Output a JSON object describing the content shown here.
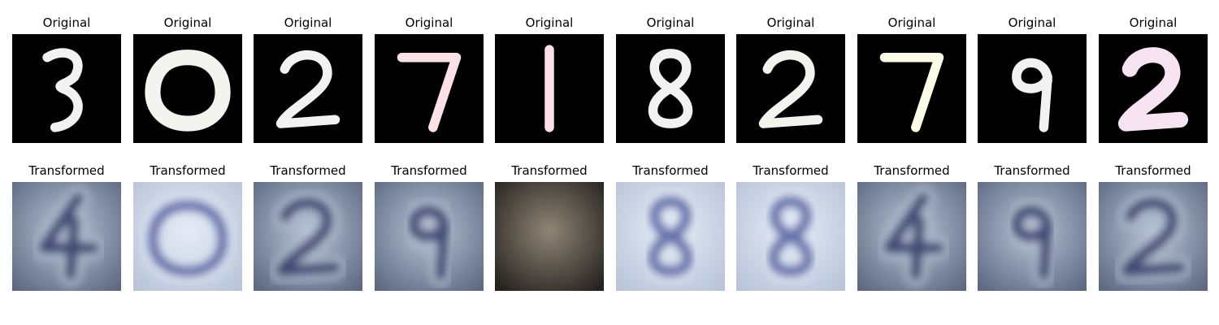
{
  "figure": {
    "rows": [
      {
        "row": "original",
        "panels": [
          {
            "title": "Original",
            "digit": "3",
            "style": "mnist-white"
          },
          {
            "title": "Original",
            "digit": "0",
            "style": "mnist-cream"
          },
          {
            "title": "Original",
            "digit": "2",
            "style": "mnist-white"
          },
          {
            "title": "Original",
            "digit": "7",
            "style": "mnist-pink"
          },
          {
            "title": "Original",
            "digit": "1",
            "style": "mnist-pink"
          },
          {
            "title": "Original",
            "digit": "8",
            "style": "mnist-white"
          },
          {
            "title": "Original",
            "digit": "2",
            "style": "mnist-cream"
          },
          {
            "title": "Original",
            "digit": "7",
            "style": "mnist-yellow"
          },
          {
            "title": "Original",
            "digit": "9",
            "style": "mnist-white"
          },
          {
            "title": "Original",
            "digit": "2",
            "style": "mnist-lavender"
          }
        ]
      },
      {
        "row": "transformed",
        "panels": [
          {
            "title": "Transformed",
            "digit": "4",
            "style": "svhn-blue"
          },
          {
            "title": "Transformed",
            "digit": "0",
            "style": "svhn-light"
          },
          {
            "title": "Transformed",
            "digit": "2",
            "style": "svhn-blue"
          },
          {
            "title": "Transformed",
            "digit": "9",
            "style": "svhn-blue"
          },
          {
            "title": "Transformed",
            "digit": "1",
            "style": "svhn-dark"
          },
          {
            "title": "Transformed",
            "digit": "8",
            "style": "svhn-light"
          },
          {
            "title": "Transformed",
            "digit": "8",
            "style": "svhn-light"
          },
          {
            "title": "Transformed",
            "digit": "4",
            "style": "svhn-blue"
          },
          {
            "title": "Transformed",
            "digit": "9",
            "style": "svhn-blue"
          },
          {
            "title": "Transformed",
            "digit": "2",
            "style": "svhn-blue"
          }
        ]
      }
    ],
    "colors": {
      "mnist_background": "#000000",
      "mnist-white": "#f2f2f2",
      "mnist-cream": "#f4f4ef",
      "mnist-pink": "#fbe1e6",
      "mnist-yellow": "#fbfbe6",
      "mnist-lavender": "#f8e3f2",
      "svhn-blue": {
        "bg": "#5d6a82",
        "fg": "#2e3566",
        "hi": "#b9c3d6"
      },
      "svhn-light": {
        "bg": "#b8c4d8",
        "fg": "#4c5aa0",
        "hi": "#e6ecf6"
      },
      "svhn-dark": {
        "bg": "#24211e",
        "fg": "#0f0d0b",
        "hi": "#8f8576"
      }
    }
  }
}
